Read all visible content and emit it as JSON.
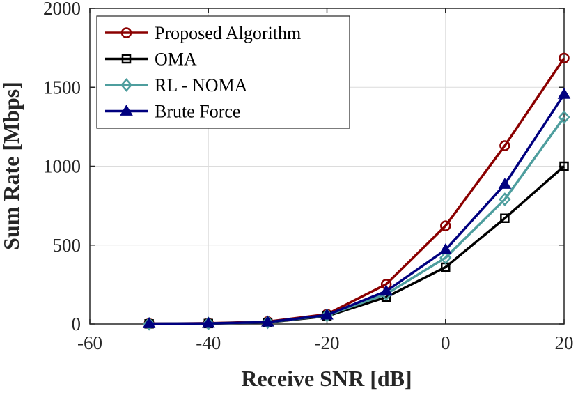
{
  "chart_data": {
    "type": "line",
    "xlabel": "Receive SNR [dB]",
    "ylabel": "Sum Rate [Mbps]",
    "xlim": [
      -60,
      20
    ],
    "ylim": [
      0,
      2000
    ],
    "x_ticks": [
      -60,
      -40,
      -20,
      0,
      20
    ],
    "y_ticks": [
      0,
      500,
      1000,
      1500,
      2000
    ],
    "x_tick_labels": [
      "-60",
      "-40",
      "-20",
      "0",
      "20"
    ],
    "y_tick_labels": [
      "0",
      "500",
      "1000",
      "1500",
      "2000"
    ],
    "grid": true,
    "legend_position": "top-left",
    "x": [
      -50,
      -40,
      -30,
      -20,
      -10,
      0,
      10,
      20
    ],
    "series": [
      {
        "name": "Proposed Algorithm",
        "color": "#8b0000",
        "marker": "circle",
        "values": [
          2,
          5,
          15,
          62,
          252,
          622,
          1130,
          1685
        ]
      },
      {
        "name": "OMA",
        "color": "#000000",
        "marker": "square",
        "values": [
          1,
          3,
          10,
          50,
          170,
          360,
          670,
          1000
        ]
      },
      {
        "name": "RL - NOMA",
        "color": "#4e9e9e",
        "marker": "diamond",
        "values": [
          1,
          4,
          11,
          55,
          190,
          420,
          790,
          1310
        ]
      },
      {
        "name": "Brute Force",
        "color": "#00007f",
        "marker": "triangle",
        "values": [
          2,
          4,
          12,
          57,
          208,
          470,
          885,
          1455
        ]
      }
    ]
  }
}
